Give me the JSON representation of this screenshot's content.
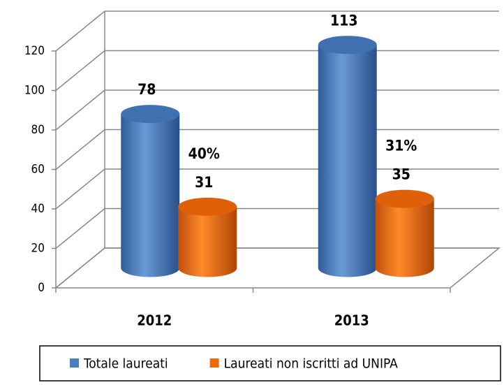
{
  "chart_data": {
    "type": "bar3d",
    "categories": [
      "2012",
      "2013"
    ],
    "series": [
      {
        "name": "Totale laureati",
        "color": "#4a7ebf",
        "values": [
          78,
          113
        ]
      },
      {
        "name": "Laureati non iscritti ad UNIPA",
        "color": "#f06a0a",
        "values": [
          31,
          35
        ]
      }
    ],
    "annotations": [
      "40%",
      "31%"
    ],
    "ylim": [
      0,
      120
    ],
    "yticks": [
      0,
      20,
      40,
      60,
      80,
      100,
      120
    ],
    "grid": true
  }
}
